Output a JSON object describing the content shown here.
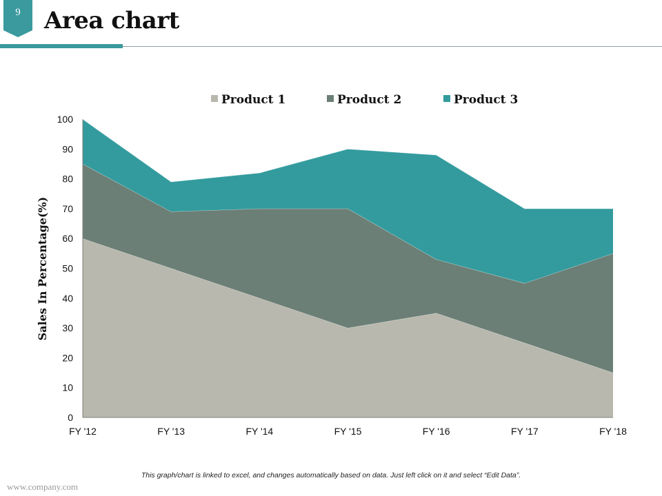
{
  "slide": {
    "page_number": "9",
    "title": "Area chart",
    "footnote": "This graph/chart is linked to excel, and changes automatically based on data. Just left click on it and select “Edit Data”.",
    "footer_url": "www.company.com"
  },
  "colors": {
    "accent": "#3a9a9e",
    "product1": "#b8b8ae",
    "product2": "#6b7f76",
    "product3": "#339b9e"
  },
  "chart_data": {
    "type": "area",
    "stacked": true,
    "title": "",
    "xlabel": "",
    "ylabel": "Sales In Percentage(%)",
    "ylim": [
      0,
      100
    ],
    "yticks": [
      0,
      10,
      20,
      30,
      40,
      50,
      60,
      70,
      80,
      90,
      100
    ],
    "categories": [
      "FY '12",
      "FY '13",
      "FY '14",
      "FY '15",
      "FY '16",
      "FY '17",
      "FY '18"
    ],
    "legend_position": "top",
    "series": [
      {
        "name": "Product 1",
        "values": [
          60,
          50,
          40,
          30,
          35,
          25,
          15
        ]
      },
      {
        "name": "Product 2",
        "values": [
          25,
          19,
          30,
          40,
          18,
          20,
          40
        ]
      },
      {
        "name": "Product 3",
        "values": [
          15,
          10,
          12,
          20,
          35,
          25,
          15
        ]
      }
    ]
  }
}
